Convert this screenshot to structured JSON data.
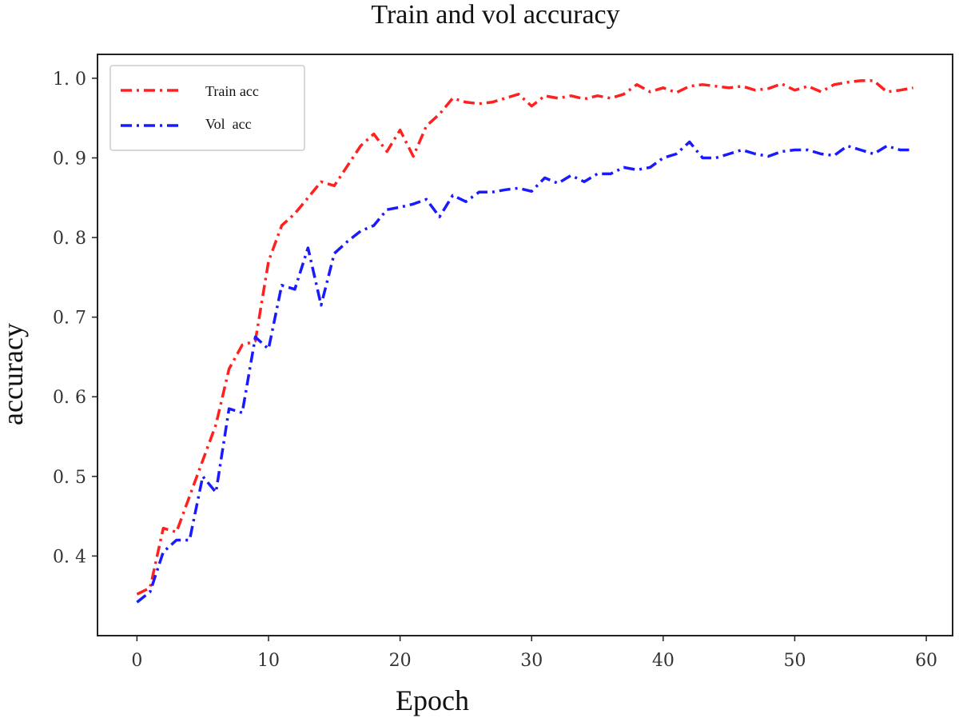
{
  "chart_data": {
    "type": "line",
    "title": "Train and vol accuracy",
    "xlabel": "Epoch",
    "ylabel": "accuracy",
    "xlim": [
      -3,
      62
    ],
    "ylim": [
      0.3,
      1.03
    ],
    "xticks": [
      0,
      10,
      20,
      30,
      40,
      50,
      60
    ],
    "yticks": [
      0.4,
      0.5,
      0.6,
      0.7,
      0.8,
      0.9,
      1.0
    ],
    "ytick_labels": [
      "0. 4",
      "0. 5",
      "0. 6",
      "0. 7",
      "0. 8",
      "0. 9",
      "1. 0"
    ],
    "grid": false,
    "legend_position": "top-left",
    "x": [
      0,
      1,
      2,
      3,
      4,
      5,
      6,
      7,
      8,
      9,
      10,
      11,
      12,
      13,
      14,
      15,
      16,
      17,
      18,
      19,
      20,
      21,
      22,
      23,
      24,
      25,
      26,
      27,
      28,
      29,
      30,
      31,
      32,
      33,
      34,
      35,
      36,
      37,
      38,
      39,
      40,
      41,
      42,
      43,
      44,
      45,
      46,
      47,
      48,
      49,
      50,
      51,
      52,
      53,
      54,
      55,
      56,
      57,
      58,
      59
    ],
    "series": [
      {
        "name": "Train acc",
        "color": "#ff2020",
        "values": [
          0.352,
          0.36,
          0.435,
          0.43,
          0.475,
          0.52,
          0.565,
          0.635,
          0.665,
          0.67,
          0.77,
          0.815,
          0.83,
          0.85,
          0.87,
          0.865,
          0.89,
          0.915,
          0.93,
          0.908,
          0.935,
          0.902,
          0.94,
          0.955,
          0.975,
          0.97,
          0.968,
          0.97,
          0.975,
          0.98,
          0.965,
          0.978,
          0.975,
          0.978,
          0.974,
          0.978,
          0.975,
          0.98,
          0.992,
          0.983,
          0.988,
          0.982,
          0.99,
          0.992,
          0.99,
          0.988,
          0.99,
          0.985,
          0.987,
          0.993,
          0.985,
          0.99,
          0.983,
          0.992,
          0.995,
          0.997,
          0.997,
          0.983,
          0.985,
          0.988
        ]
      },
      {
        "name": "Vol  acc",
        "color": "#1a1aff",
        "values": [
          0.342,
          0.355,
          0.405,
          0.42,
          0.42,
          0.5,
          0.48,
          0.585,
          0.58,
          0.675,
          0.66,
          0.74,
          0.735,
          0.787,
          0.715,
          0.78,
          0.795,
          0.808,
          0.815,
          0.835,
          0.838,
          0.842,
          0.848,
          0.826,
          0.853,
          0.845,
          0.857,
          0.857,
          0.86,
          0.862,
          0.858,
          0.875,
          0.868,
          0.878,
          0.87,
          0.88,
          0.88,
          0.888,
          0.885,
          0.888,
          0.9,
          0.905,
          0.92,
          0.9,
          0.9,
          0.905,
          0.91,
          0.905,
          0.902,
          0.908,
          0.91,
          0.91,
          0.905,
          0.903,
          0.915,
          0.91,
          0.905,
          0.915,
          0.91,
          0.91
        ]
      }
    ]
  }
}
